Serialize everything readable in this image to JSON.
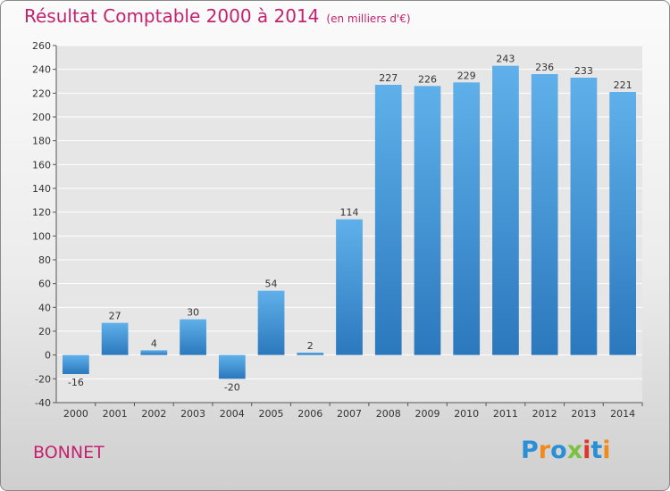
{
  "header": {
    "title": "Résultat Comptable 2000 à 2014",
    "unit": "(en milliers d'€)"
  },
  "footer": {
    "commune": "BONNET",
    "brand": "Proxiti",
    "brand_letters": [
      {
        "ch": "P",
        "color": "#2b8fd6"
      },
      {
        "ch": "r",
        "color": "#f08a1c"
      },
      {
        "ch": "o",
        "color": "#2b8fd6"
      },
      {
        "ch": "x",
        "color": "#7cc242"
      },
      {
        "ch": "i",
        "color": "#e0352b"
      },
      {
        "ch": "t",
        "color": "#2b8fd6"
      },
      {
        "ch": "i",
        "color": "#f08a1c"
      }
    ]
  },
  "colors": {
    "title": "#c4226f",
    "bar_light": "#5fb0ea",
    "bar_dark": "#2b78bd",
    "grid": "#ffffff"
  },
  "chart_data": {
    "type": "bar",
    "title": "Résultat Comptable 2000 à 2014",
    "subtitle": "(en milliers d'€)",
    "categories": [
      "2000",
      "2001",
      "2002",
      "2003",
      "2004",
      "2005",
      "2006",
      "2007",
      "2008",
      "2009",
      "2010",
      "2011",
      "2012",
      "2013",
      "2014"
    ],
    "values": [
      -16,
      27,
      4,
      30,
      -20,
      54,
      2,
      114,
      227,
      226,
      229,
      243,
      236,
      233,
      221
    ],
    "ylim": [
      -40,
      260
    ],
    "yticks": [
      -40,
      -20,
      0,
      20,
      40,
      60,
      80,
      100,
      120,
      140,
      160,
      180,
      200,
      220,
      240,
      260
    ],
    "grid": true,
    "data_labels": true
  }
}
